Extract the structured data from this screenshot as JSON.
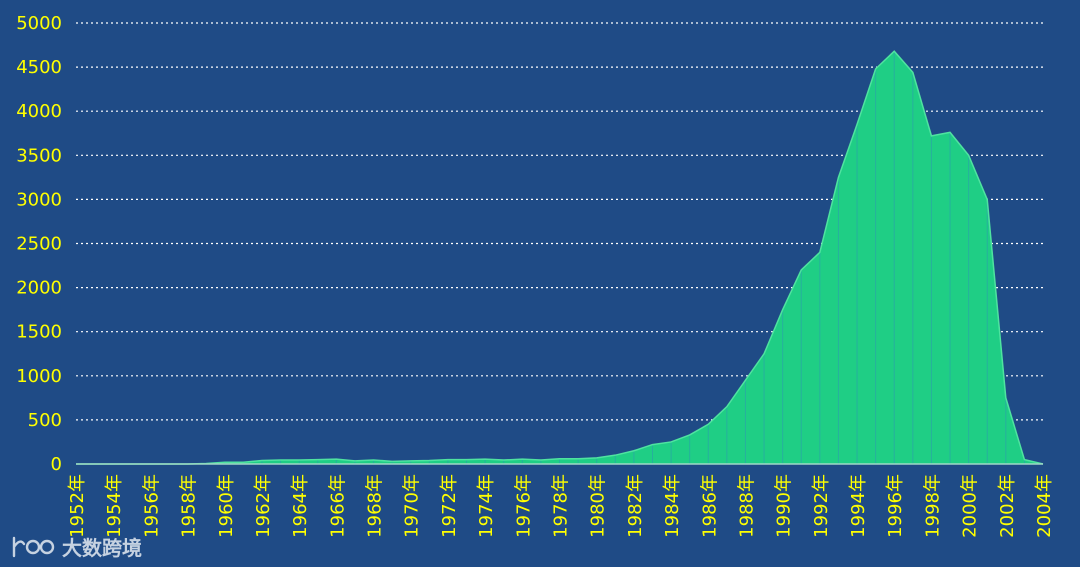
{
  "colors": {
    "background": "#1f4b86",
    "area_fill": "#1fce85",
    "area_stroke": "#4fe3a0",
    "vline": "#2aa4a8",
    "tick_text": "#ffff00",
    "grid": "#ffffff"
  },
  "watermark": {
    "icon": "logo-100-icon",
    "text": "大数跨境"
  },
  "chart_data": {
    "type": "area",
    "title": "",
    "xlabel": "",
    "ylabel": "",
    "x_tick_suffix": "年",
    "ylim": [
      0,
      5000
    ],
    "y_ticks": [
      0,
      500,
      1000,
      1500,
      2000,
      2500,
      3000,
      3500,
      4000,
      4500,
      5000
    ],
    "x_ticks": [
      "1952年",
      "1954年",
      "1956年",
      "1958年",
      "1960年",
      "1962年",
      "1964年",
      "1966年",
      "1968年",
      "1970年",
      "1972年",
      "1974年",
      "1976年",
      "1978年",
      "1980年",
      "1982年",
      "1984年",
      "1986年",
      "1988年",
      "1990年",
      "1992年",
      "1994年",
      "1996年",
      "1998年",
      "2000年",
      "2002年",
      "2004年"
    ],
    "grid": true,
    "legend": "none",
    "x": [
      1952,
      1953,
      1954,
      1955,
      1956,
      1957,
      1958,
      1959,
      1960,
      1961,
      1962,
      1963,
      1964,
      1965,
      1966,
      1967,
      1968,
      1969,
      1970,
      1971,
      1972,
      1973,
      1974,
      1975,
      1976,
      1977,
      1978,
      1979,
      1980,
      1981,
      1982,
      1983,
      1984,
      1985,
      1986,
      1987,
      1988,
      1989,
      1990,
      1991,
      1992,
      1993,
      1994,
      1995,
      1996,
      1997,
      1998,
      1999,
      2000,
      2001,
      2002,
      2003,
      2004
    ],
    "values": [
      0,
      0,
      0,
      0,
      0,
      0,
      0,
      5,
      20,
      20,
      40,
      45,
      45,
      50,
      55,
      35,
      45,
      30,
      35,
      40,
      50,
      50,
      55,
      45,
      55,
      45,
      60,
      60,
      70,
      100,
      150,
      220,
      250,
      330,
      450,
      650,
      950,
      1250,
      1750,
      2200,
      2400,
      3250,
      3850,
      4480,
      4680,
      4440,
      3720,
      3760,
      3500,
      3000,
      750,
      50,
      0
    ]
  }
}
